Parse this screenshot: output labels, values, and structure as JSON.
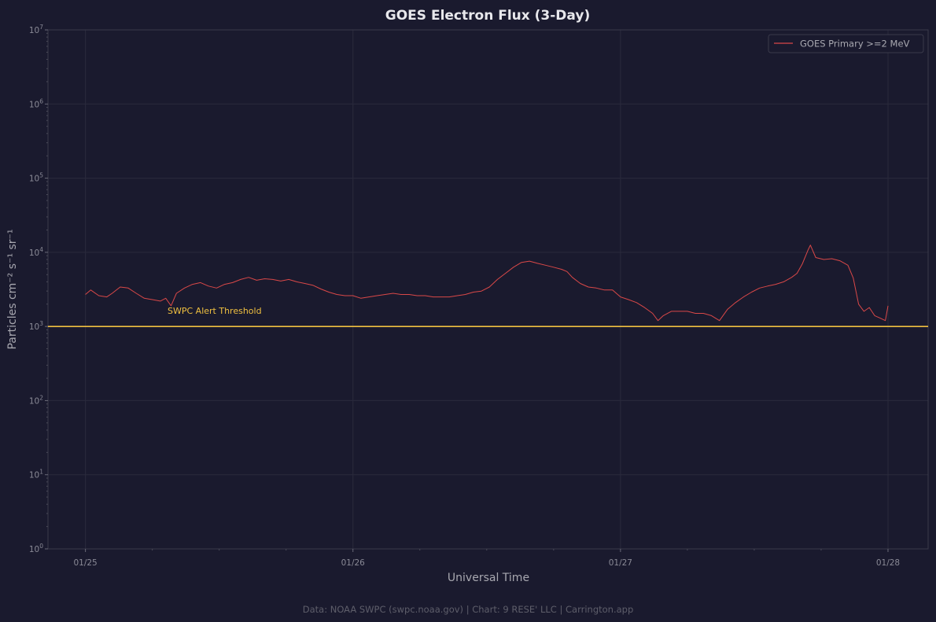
{
  "chart_data": {
    "type": "line",
    "title": "GOES Electron Flux (3-Day)",
    "xlabel": "Universal Time",
    "ylabel": "Particles cm⁻² s⁻¹ sr⁻¹",
    "y_scale": "log",
    "ylim": [
      1,
      10000000
    ],
    "xlim": [
      -0.14,
      3.15
    ],
    "y_ticks": [
      {
        "value": 1,
        "base": "10",
        "exp": "0"
      },
      {
        "value": 10,
        "base": "10",
        "exp": "1"
      },
      {
        "value": 100,
        "base": "10",
        "exp": "2"
      },
      {
        "value": 1000,
        "base": "10",
        "exp": "3"
      },
      {
        "value": 10000,
        "base": "10",
        "exp": "4"
      },
      {
        "value": 100000,
        "base": "10",
        "exp": "5"
      },
      {
        "value": 1000000,
        "base": "10",
        "exp": "6"
      },
      {
        "value": 10000000,
        "base": "10",
        "exp": "7"
      }
    ],
    "x_ticks": [
      {
        "value": 0,
        "label": "01/25"
      },
      {
        "value": 1,
        "label": "01/26"
      },
      {
        "value": 2,
        "label": "01/27"
      },
      {
        "value": 3,
        "label": "01/28"
      }
    ],
    "grid": true,
    "legend_position": "top-right",
    "series": [
      {
        "name": "GOES Primary >=2 MeV",
        "color": "#d94848",
        "points": [
          [
            0.0,
            2700
          ],
          [
            0.02,
            3100
          ],
          [
            0.05,
            2600
          ],
          [
            0.08,
            2500
          ],
          [
            0.1,
            2800
          ],
          [
            0.13,
            3400
          ],
          [
            0.16,
            3300
          ],
          [
            0.19,
            2800
          ],
          [
            0.22,
            2400
          ],
          [
            0.25,
            2300
          ],
          [
            0.28,
            2200
          ],
          [
            0.3,
            2400
          ],
          [
            0.32,
            1900
          ],
          [
            0.34,
            2800
          ],
          [
            0.37,
            3300
          ],
          [
            0.4,
            3700
          ],
          [
            0.43,
            3900
          ],
          [
            0.46,
            3500
          ],
          [
            0.49,
            3300
          ],
          [
            0.52,
            3700
          ],
          [
            0.55,
            3900
          ],
          [
            0.58,
            4300
          ],
          [
            0.61,
            4600
          ],
          [
            0.64,
            4200
          ],
          [
            0.67,
            4400
          ],
          [
            0.7,
            4300
          ],
          [
            0.73,
            4100
          ],
          [
            0.76,
            4300
          ],
          [
            0.79,
            4000
          ],
          [
            0.82,
            3800
          ],
          [
            0.85,
            3600
          ],
          [
            0.88,
            3200
          ],
          [
            0.91,
            2900
          ],
          [
            0.94,
            2700
          ],
          [
            0.97,
            2600
          ],
          [
            1.0,
            2600
          ],
          [
            1.03,
            2400
          ],
          [
            1.06,
            2500
          ],
          [
            1.09,
            2600
          ],
          [
            1.12,
            2700
          ],
          [
            1.15,
            2800
          ],
          [
            1.18,
            2700
          ],
          [
            1.21,
            2700
          ],
          [
            1.24,
            2600
          ],
          [
            1.27,
            2600
          ],
          [
            1.3,
            2500
          ],
          [
            1.33,
            2500
          ],
          [
            1.36,
            2500
          ],
          [
            1.39,
            2600
          ],
          [
            1.42,
            2700
          ],
          [
            1.45,
            2900
          ],
          [
            1.48,
            3000
          ],
          [
            1.51,
            3400
          ],
          [
            1.54,
            4300
          ],
          [
            1.57,
            5200
          ],
          [
            1.6,
            6300
          ],
          [
            1.63,
            7300
          ],
          [
            1.66,
            7600
          ],
          [
            1.69,
            7100
          ],
          [
            1.72,
            6700
          ],
          [
            1.75,
            6300
          ],
          [
            1.78,
            5900
          ],
          [
            1.8,
            5500
          ],
          [
            1.82,
            4600
          ],
          [
            1.85,
            3800
          ],
          [
            1.88,
            3400
          ],
          [
            1.91,
            3300
          ],
          [
            1.94,
            3100
          ],
          [
            1.97,
            3100
          ],
          [
            2.0,
            2500
          ],
          [
            2.03,
            2300
          ],
          [
            2.06,
            2100
          ],
          [
            2.09,
            1800
          ],
          [
            2.12,
            1500
          ],
          [
            2.14,
            1200
          ],
          [
            2.16,
            1400
          ],
          [
            2.19,
            1600
          ],
          [
            2.22,
            1600
          ],
          [
            2.25,
            1600
          ],
          [
            2.28,
            1500
          ],
          [
            2.31,
            1500
          ],
          [
            2.34,
            1400
          ],
          [
            2.37,
            1200
          ],
          [
            2.4,
            1700
          ],
          [
            2.43,
            2100
          ],
          [
            2.46,
            2500
          ],
          [
            2.49,
            2900
          ],
          [
            2.52,
            3300
          ],
          [
            2.55,
            3500
          ],
          [
            2.58,
            3700
          ],
          [
            2.61,
            4000
          ],
          [
            2.64,
            4600
          ],
          [
            2.66,
            5200
          ],
          [
            2.68,
            7000
          ],
          [
            2.7,
            10500
          ],
          [
            2.71,
            12500
          ],
          [
            2.73,
            8500
          ],
          [
            2.76,
            8000
          ],
          [
            2.79,
            8200
          ],
          [
            2.82,
            7700
          ],
          [
            2.85,
            6700
          ],
          [
            2.87,
            4500
          ],
          [
            2.89,
            2000
          ],
          [
            2.91,
            1600
          ],
          [
            2.93,
            1800
          ],
          [
            2.95,
            1400
          ],
          [
            2.97,
            1300
          ],
          [
            2.99,
            1200
          ],
          [
            3.0,
            1900
          ]
        ]
      }
    ],
    "threshold": {
      "label": "SWPC Alert Threshold",
      "value": 1000,
      "color": "#f0c040"
    }
  },
  "footer": "Data: NOAA SWPC (swpc.noaa.gov) | Chart: 9 RESE' LLC | Carrington.app"
}
